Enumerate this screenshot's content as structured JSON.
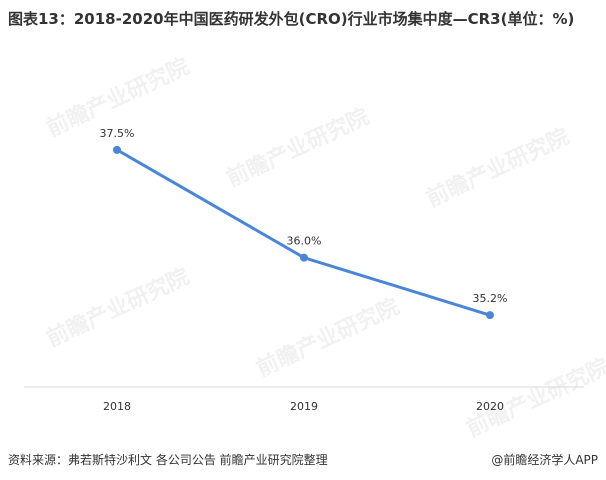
{
  "title": "图表13：2018-2020年中国医药研发外包(CRO)行业市场集中度—CR3(单位：%)",
  "footer": {
    "source": "资料来源：弗若斯特沙利文 各公司公告 前瞻产业研究院整理",
    "brand": "@前瞻经济学人APP"
  },
  "watermark": "前瞻产业研究院",
  "colors": {
    "line": "#4a86d8",
    "axis": "#d9d9d9"
  },
  "chart_data": {
    "type": "line",
    "x": [
      "2018",
      "2019",
      "2020"
    ],
    "series": [
      {
        "values": [
          37.5,
          36.0,
          35.2
        ],
        "labels": [
          "37.5%",
          "36.0%",
          "35.2%"
        ]
      }
    ],
    "ylim": [
      34.2,
      38.5
    ],
    "grid": false,
    "legend": "none"
  }
}
